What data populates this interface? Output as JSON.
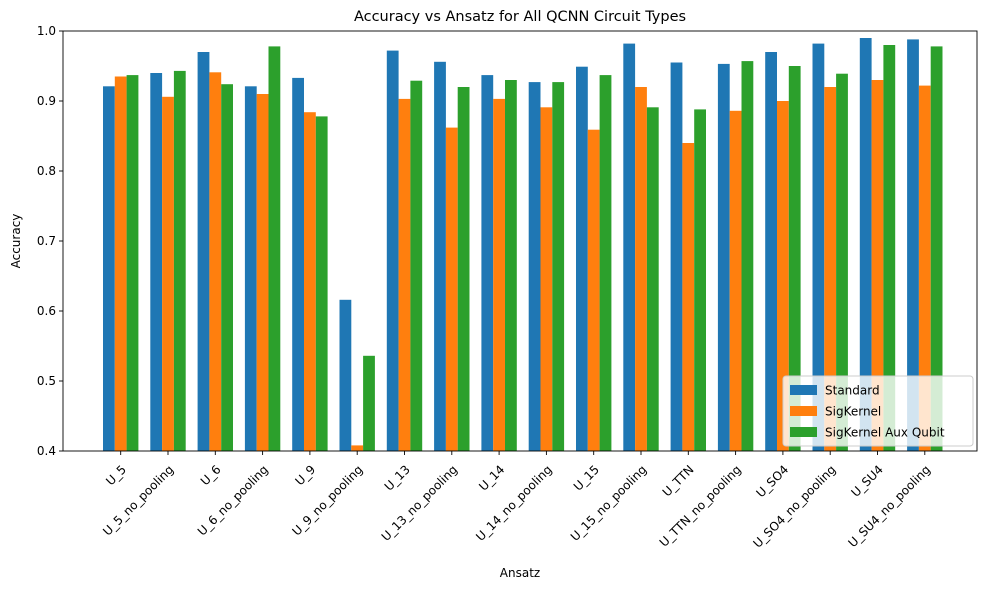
{
  "chart_data": {
    "type": "bar",
    "title": "Accuracy vs Ansatz for All QCNN Circuit Types",
    "xlabel": "Ansatz",
    "ylabel": "Accuracy",
    "ylim": [
      0.4,
      1.0
    ],
    "yticks": [
      "0.4",
      "0.5",
      "0.6",
      "0.7",
      "0.8",
      "0.9",
      "1.0"
    ],
    "grid": false,
    "legend_position": "lower-right",
    "categories": [
      "U_5",
      "U_5_no_pooling",
      "U_6",
      "U_6_no_pooling",
      "U_9",
      "U_9_no_pooling",
      "U_13",
      "U_13_no_pooling",
      "U_14",
      "U_14_no_pooling",
      "U_15",
      "U_15_no_pooling",
      "U_TTN",
      "U_TTN_no_pooling",
      "U_SO4",
      "U_SO4_no_pooling",
      "U_SU4",
      "U_SU4_no_pooling"
    ],
    "series": [
      {
        "name": "Standard",
        "color": "#1f77b4",
        "values": [
          0.921,
          0.94,
          0.97,
          0.921,
          0.933,
          0.616,
          0.972,
          0.956,
          0.937,
          0.927,
          0.949,
          0.982,
          0.955,
          0.953,
          0.97,
          0.982,
          0.99,
          0.988
        ]
      },
      {
        "name": "SigKernel",
        "color": "#ff7f0e",
        "values": [
          0.935,
          0.906,
          0.941,
          0.91,
          0.884,
          0.408,
          0.903,
          0.862,
          0.903,
          0.891,
          0.859,
          0.92,
          0.84,
          0.886,
          0.9,
          0.92,
          0.93,
          0.922
        ]
      },
      {
        "name": "SigKernel Aux Qubit",
        "color": "#2ca02c",
        "values": [
          0.937,
          0.943,
          0.924,
          0.978,
          0.878,
          0.536,
          0.929,
          0.92,
          0.93,
          0.927,
          0.937,
          0.891,
          0.888,
          0.957,
          0.95,
          0.939,
          0.98,
          0.978
        ]
      }
    ]
  }
}
